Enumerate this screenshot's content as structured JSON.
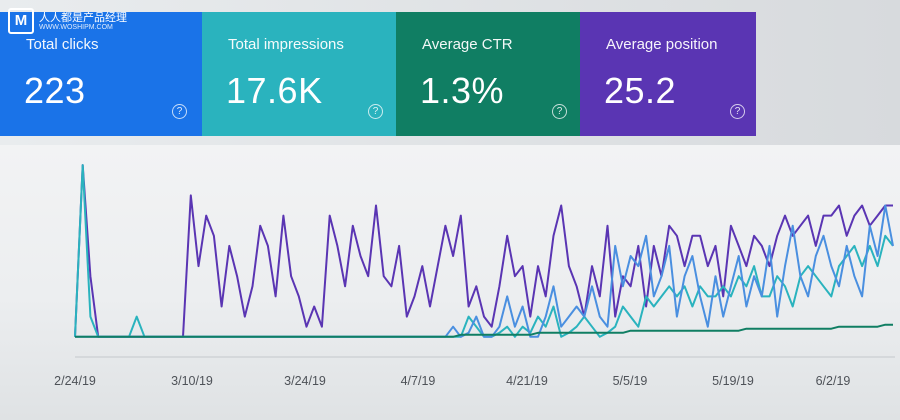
{
  "watermark": {
    "logo_letter": "M",
    "name": "人人都是产品经理",
    "url": "WWW.WOSHIPM.COM"
  },
  "cards": {
    "clicks": {
      "label": "Total clicks",
      "value": "223",
      "color": "#1a73e8"
    },
    "impressions": {
      "label": "Total impressions",
      "value": "17.6K",
      "color": "#2ab3be"
    },
    "ctr": {
      "label": "Average CTR",
      "value": "1.3%",
      "color": "#107e63"
    },
    "position": {
      "label": "Average position",
      "value": "25.2",
      "color": "#5a35b3"
    },
    "help_glyph": "?"
  },
  "chart_data": {
    "type": "line",
    "x_ticks": [
      "2/24/19",
      "3/10/19",
      "3/24/19",
      "4/7/19",
      "4/21/19",
      "5/5/19",
      "5/19/19",
      "6/2/19"
    ],
    "series": [
      {
        "color": "#5a35b3",
        "values": [
          10,
          95,
          40,
          10,
          10,
          10,
          10,
          10,
          10,
          10,
          10,
          10,
          10,
          10,
          10,
          80,
          45,
          70,
          60,
          25,
          55,
          40,
          20,
          35,
          65,
          55,
          30,
          70,
          40,
          30,
          15,
          25,
          15,
          70,
          55,
          35,
          65,
          50,
          40,
          75,
          40,
          35,
          55,
          20,
          30,
          45,
          25,
          45,
          65,
          50,
          70,
          25,
          35,
          20,
          15,
          35,
          60,
          40,
          45,
          20,
          45,
          30,
          60,
          75,
          45,
          35,
          20,
          45,
          30,
          65,
          20,
          40,
          35,
          55,
          25,
          55,
          40,
          65,
          60,
          45,
          60,
          60,
          45,
          55,
          30,
          65,
          55,
          45,
          60,
          55,
          45,
          60,
          70,
          60,
          65,
          70,
          55,
          70,
          70,
          75,
          60,
          70,
          75,
          65,
          70,
          75,
          75
        ]
      },
      {
        "color": "#2ab3be",
        "values": [
          10,
          95,
          20,
          10,
          10,
          10,
          10,
          10,
          20,
          10,
          10,
          10,
          10,
          10,
          10,
          10,
          10,
          10,
          10,
          10,
          10,
          10,
          10,
          10,
          10,
          10,
          10,
          10,
          10,
          10,
          10,
          10,
          10,
          10,
          10,
          10,
          10,
          10,
          10,
          10,
          10,
          10,
          10,
          10,
          10,
          10,
          10,
          10,
          10,
          10,
          10,
          20,
          15,
          10,
          10,
          12,
          15,
          10,
          15,
          12,
          20,
          15,
          25,
          10,
          12,
          15,
          20,
          15,
          10,
          12,
          15,
          25,
          20,
          15,
          30,
          25,
          30,
          35,
          30,
          35,
          25,
          35,
          30,
          30,
          35,
          30,
          40,
          35,
          45,
          30,
          30,
          40,
          35,
          25,
          40,
          45,
          40,
          35,
          30,
          45,
          50,
          55,
          45,
          55,
          45,
          60,
          55
        ]
      },
      {
        "color": "#4a8fe0",
        "values": [
          10,
          10,
          10,
          10,
          10,
          10,
          10,
          10,
          10,
          10,
          10,
          10,
          10,
          10,
          10,
          10,
          10,
          10,
          10,
          10,
          10,
          10,
          10,
          10,
          10,
          10,
          10,
          10,
          10,
          10,
          10,
          10,
          10,
          10,
          10,
          10,
          10,
          10,
          10,
          10,
          10,
          10,
          10,
          10,
          10,
          10,
          10,
          10,
          10,
          15,
          10,
          12,
          20,
          10,
          10,
          15,
          30,
          15,
          25,
          10,
          10,
          20,
          35,
          15,
          20,
          25,
          20,
          35,
          20,
          15,
          55,
          35,
          50,
          45,
          60,
          30,
          40,
          55,
          20,
          40,
          50,
          30,
          15,
          40,
          20,
          35,
          50,
          25,
          40,
          30,
          55,
          20,
          45,
          65,
          40,
          30,
          50,
          60,
          45,
          35,
          55,
          40,
          30,
          65,
          50,
          75,
          55
        ]
      },
      {
        "color": "#107e63",
        "values": [
          10,
          10,
          10,
          10,
          10,
          10,
          10,
          10,
          10,
          10,
          10,
          10,
          10,
          10,
          10,
          10,
          10,
          10,
          10,
          10,
          10,
          10,
          10,
          10,
          10,
          10,
          10,
          10,
          10,
          10,
          10,
          10,
          10,
          10,
          10,
          10,
          10,
          10,
          10,
          10,
          10,
          10,
          10,
          10,
          10,
          10,
          10,
          10,
          10,
          10,
          11,
          11,
          11,
          11,
          11,
          11,
          11,
          11,
          11,
          11,
          12,
          12,
          12,
          12,
          12,
          12,
          12,
          12,
          12,
          12,
          12,
          12,
          13,
          13,
          13,
          13,
          13,
          13,
          13,
          13,
          13,
          13,
          13,
          13,
          13,
          13,
          13,
          14,
          14,
          14,
          14,
          14,
          14,
          14,
          14,
          14,
          14,
          14,
          14,
          15,
          15,
          15,
          15,
          15,
          15,
          16,
          16
        ]
      }
    ],
    "ylim": [
      0,
      100
    ]
  }
}
